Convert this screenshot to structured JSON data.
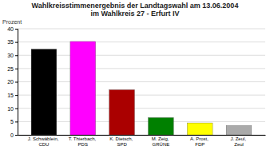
{
  "chart_data": {
    "type": "bar",
    "title": "Wahlkreisstimmenergebnis der Landtagswahl am 13.06.2004",
    "subtitle": "im Wahlkreis 27 - Erfurt IV",
    "ylabel": "Prozent",
    "categories": [
      "J. Schwäblein, CDU",
      "T. Thierbach, PDS",
      "K. Dietsch, SPD",
      "M. Zeig, GRÜNE",
      "A. Prost, FDP",
      "J. Zeul, Zeul"
    ],
    "values": [
      32.3,
      35.2,
      17.0,
      6.5,
      4.5,
      3.5
    ],
    "colors": [
      "#000000",
      "#ff00ff",
      "#aa0000",
      "#008000",
      "#ffff00",
      "#aaaaaa"
    ],
    "ylim": [
      0,
      40
    ],
    "yticks": [
      0,
      5,
      10,
      15,
      20,
      25,
      30,
      35,
      40
    ],
    "grid": true
  }
}
